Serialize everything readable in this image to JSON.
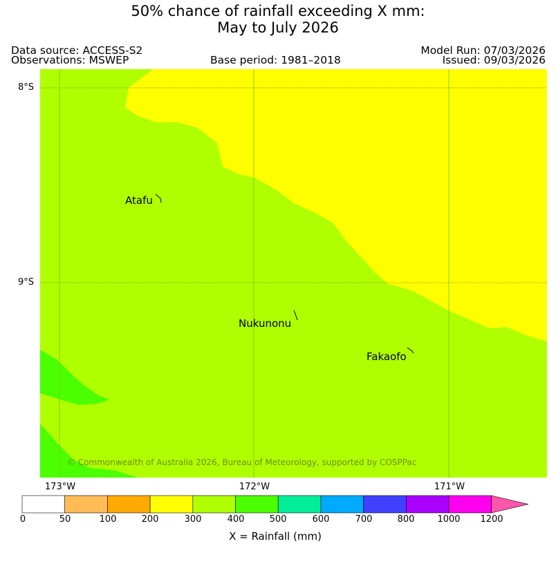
{
  "title": {
    "line1": "50% chance of rainfall exceeding X mm:",
    "line2": "May to July 2026"
  },
  "meta": {
    "data_source": "Data source: ACCESS-S2",
    "observations": "Observations: MSWEP",
    "base_period": "Base period: 1981–2018",
    "model_run": "Model Run: 07/03/2026",
    "issued": "Issued: 09/03/2026"
  },
  "map": {
    "lat_labels": [
      "8°S",
      "9°S"
    ],
    "lon_labels": [
      "173°W",
      "172°W",
      "171°W"
    ],
    "places": [
      {
        "name": "Atafu"
      },
      {
        "name": "Nukunonu"
      },
      {
        "name": "Fakaofo"
      }
    ],
    "copyright": "© Commonwealth of Australia 2026, Bureau of Meteorology, supported by COSPPac",
    "fill_colors": {
      "300-400": "#b0ff00",
      "200-300": "#ffff00",
      "400-500": "#4cff00"
    }
  },
  "colorbar": {
    "label": "X = Rainfall (mm)",
    "ticks": [
      "0",
      "50",
      "100",
      "200",
      "300",
      "400",
      "500",
      "600",
      "700",
      "800",
      "1000",
      "1200"
    ],
    "colors": [
      "#ffffff",
      "#ffbb55",
      "#ffaa00",
      "#ffff00",
      "#b0ff00",
      "#4cff00",
      "#00ee99",
      "#00aaff",
      "#4040ff",
      "#aa00ff",
      "#ff00ee",
      "#ff55aa"
    ]
  }
}
